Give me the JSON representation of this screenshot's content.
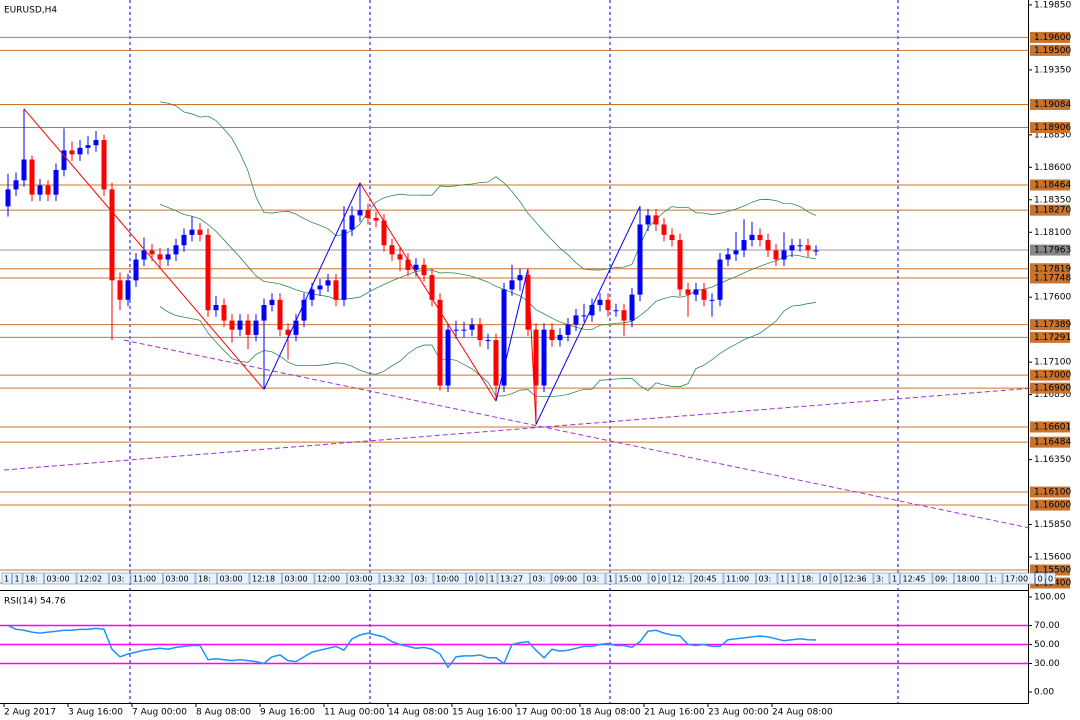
{
  "chart_data": [
    {
      "type": "candlestick",
      "title": "EURUSD,H4",
      "categories": [
        "2 Aug 2017",
        null,
        null,
        null,
        null,
        null,
        null,
        null,
        "3 Aug 16:00",
        null,
        null,
        null,
        null,
        null,
        null,
        null,
        "7 Aug 00:00",
        null,
        null,
        null,
        null,
        null,
        null,
        null,
        "8 Aug 08:00",
        null,
        null,
        null,
        null,
        null,
        null,
        null,
        "9 Aug 16:00",
        null,
        null,
        null,
        null,
        null,
        null,
        null,
        "11 Aug 00:00",
        null,
        null,
        null,
        null,
        null,
        null,
        null,
        "14 Aug 08:00",
        null,
        null,
        null,
        null,
        null,
        null,
        null,
        "15 Aug 16:00",
        null,
        null,
        null,
        null,
        null,
        null,
        null,
        "17 Aug 00:00",
        null,
        null,
        null,
        null,
        null,
        null,
        null,
        "18 Aug 08:00",
        null,
        null,
        null,
        null,
        null,
        null,
        null,
        "21 Aug 16:00",
        null,
        null,
        null,
        null,
        null,
        null,
        null,
        "23 Aug 00:00",
        null,
        null,
        null,
        null,
        null,
        null,
        null,
        "24 Aug 08:00",
        null,
        null,
        null,
        null,
        null
      ],
      "ohlc": [
        [
          1.183,
          1.1855,
          1.1822,
          1.1843
        ],
        [
          1.1843,
          1.1856,
          1.1838,
          1.185
        ],
        [
          1.185,
          1.1905,
          1.1845,
          1.1866
        ],
        [
          1.1866,
          1.1869,
          1.1834,
          1.1839
        ],
        [
          1.1839,
          1.1851,
          1.1834,
          1.1846
        ],
        [
          1.1846,
          1.185,
          1.1834,
          1.1839
        ],
        [
          1.1839,
          1.1863,
          1.1834,
          1.1858
        ],
        [
          1.1858,
          1.189,
          1.1853,
          1.1873
        ],
        [
          1.1873,
          1.188,
          1.1865,
          1.187
        ],
        [
          1.187,
          1.1881,
          1.1865,
          1.1875
        ],
        [
          1.1875,
          1.1884,
          1.187,
          1.1877
        ],
        [
          1.1877,
          1.1888,
          1.1872,
          1.1881
        ],
        [
          1.1881,
          1.1885,
          1.1838,
          1.1843
        ],
        [
          1.1843,
          1.1848,
          1.1727,
          1.1773
        ],
        [
          1.1773,
          1.1779,
          1.175,
          1.1758
        ],
        [
          1.1758,
          1.1778,
          1.1753,
          1.1773
        ],
        [
          1.1773,
          1.1794,
          1.1768,
          1.1789
        ],
        [
          1.1789,
          1.1806,
          1.1784,
          1.1796
        ],
        [
          1.1796,
          1.1801,
          1.1788,
          1.1793
        ],
        [
          1.1793,
          1.1798,
          1.1782,
          1.1789
        ],
        [
          1.1789,
          1.1798,
          1.1784,
          1.1793
        ],
        [
          1.1793,
          1.1805,
          1.1788,
          1.18
        ],
        [
          1.18,
          1.1813,
          1.1795,
          1.1808
        ],
        [
          1.1808,
          1.1822,
          1.1803,
          1.1812
        ],
        [
          1.1812,
          1.1817,
          1.1803,
          1.1808
        ],
        [
          1.1808,
          1.1813,
          1.1745,
          1.175
        ],
        [
          1.175,
          1.1761,
          1.1745,
          1.1754
        ],
        [
          1.1754,
          1.1759,
          1.1737,
          1.1742
        ],
        [
          1.1742,
          1.1747,
          1.1725,
          1.1735
        ],
        [
          1.1735,
          1.1747,
          1.173,
          1.1742
        ],
        [
          1.1742,
          1.1747,
          1.172,
          1.1731
        ],
        [
          1.1731,
          1.1747,
          1.1726,
          1.1742
        ],
        [
          1.1742,
          1.1759,
          1.1689,
          1.1754
        ],
        [
          1.1754,
          1.1763,
          1.1749,
          1.1758
        ],
        [
          1.1758,
          1.1763,
          1.173,
          1.1735
        ],
        [
          1.1735,
          1.174,
          1.1712,
          1.1731
        ],
        [
          1.1731,
          1.1747,
          1.1726,
          1.1742
        ],
        [
          1.1742,
          1.1763,
          1.1737,
          1.1758
        ],
        [
          1.1758,
          1.1771,
          1.1753,
          1.1766
        ],
        [
          1.1766,
          1.1774,
          1.1761,
          1.1769
        ],
        [
          1.1769,
          1.1778,
          1.1764,
          1.1773
        ],
        [
          1.1773,
          1.1778,
          1.1753,
          1.1758
        ],
        [
          1.1758,
          1.183,
          1.1753,
          1.1812
        ],
        [
          1.1812,
          1.183,
          1.1807,
          1.1823
        ],
        [
          1.1823,
          1.1848,
          1.1818,
          1.1827
        ],
        [
          1.1827,
          1.1832,
          1.1816,
          1.1821
        ],
        [
          1.1821,
          1.1826,
          1.1814,
          1.1819
        ],
        [
          1.1819,
          1.1824,
          1.1795,
          1.18
        ],
        [
          1.18,
          1.1805,
          1.1788,
          1.1793
        ],
        [
          1.1793,
          1.1798,
          1.178,
          1.1789
        ],
        [
          1.1789,
          1.1794,
          1.1776,
          1.1781
        ],
        [
          1.1781,
          1.179,
          1.1776,
          1.1785
        ],
        [
          1.1785,
          1.179,
          1.1772,
          1.1777
        ],
        [
          1.1777,
          1.1782,
          1.1753,
          1.1758
        ],
        [
          1.1758,
          1.1763,
          1.1688,
          1.1692
        ],
        [
          1.1692,
          1.174,
          1.1687,
          1.1735
        ],
        [
          1.1735,
          1.1742,
          1.1728,
          1.1735
        ],
        [
          1.1735,
          1.1741,
          1.1729,
          1.1735
        ],
        [
          1.1735,
          1.1744,
          1.173,
          1.1739
        ],
        [
          1.1739,
          1.1744,
          1.1722,
          1.1727
        ],
        [
          1.1727,
          1.1732,
          1.172,
          1.1727
        ],
        [
          1.1727,
          1.1732,
          1.168,
          1.1692
        ],
        [
          1.1692,
          1.1771,
          1.1687,
          1.1766
        ],
        [
          1.1766,
          1.1785,
          1.1761,
          1.1773
        ],
        [
          1.1773,
          1.1782,
          1.1765,
          1.1777
        ],
        [
          1.1777,
          1.1782,
          1.173,
          1.1735
        ],
        [
          1.1735,
          1.174,
          1.1662,
          1.1692
        ],
        [
          1.1692,
          1.174,
          1.1687,
          1.1735
        ],
        [
          1.1735,
          1.174,
          1.1722,
          1.1727
        ],
        [
          1.1727,
          1.1736,
          1.1722,
          1.1731
        ],
        [
          1.1731,
          1.1744,
          1.1726,
          1.1739
        ],
        [
          1.1739,
          1.1751,
          1.1734,
          1.1746
        ],
        [
          1.1746,
          1.1755,
          1.1741,
          1.1746
        ],
        [
          1.1746,
          1.1759,
          1.1741,
          1.1754
        ],
        [
          1.1754,
          1.1763,
          1.1749,
          1.1758
        ],
        [
          1.1758,
          1.1763,
          1.1745,
          1.175
        ],
        [
          1.175,
          1.1755,
          1.1745,
          1.175
        ],
        [
          1.175,
          1.1755,
          1.173,
          1.1742
        ],
        [
          1.1742,
          1.1767,
          1.1737,
          1.1762
        ],
        [
          1.1762,
          1.183,
          1.1757,
          1.1816
        ],
        [
          1.1816,
          1.1828,
          1.1811,
          1.1823
        ],
        [
          1.1823,
          1.1828,
          1.1811,
          1.1816
        ],
        [
          1.1816,
          1.1821,
          1.1803,
          1.1808
        ],
        [
          1.1808,
          1.1813,
          1.1799,
          1.1804
        ],
        [
          1.1804,
          1.1809,
          1.1761,
          1.1766
        ],
        [
          1.1766,
          1.1771,
          1.1745,
          1.1762
        ],
        [
          1.1762,
          1.1771,
          1.1757,
          1.1766
        ],
        [
          1.1766,
          1.1771,
          1.1753,
          1.1758
        ],
        [
          1.1758,
          1.1763,
          1.1745,
          1.1758
        ],
        [
          1.1758,
          1.1794,
          1.1753,
          1.1789
        ],
        [
          1.1789,
          1.1798,
          1.1784,
          1.1793
        ],
        [
          1.1793,
          1.181,
          1.1788,
          1.1796
        ],
        [
          1.1796,
          1.182,
          1.1791,
          1.1804
        ],
        [
          1.1804,
          1.1818,
          1.1799,
          1.1808
        ],
        [
          1.1808,
          1.1813,
          1.1799,
          1.1804
        ],
        [
          1.1804,
          1.1809,
          1.1791,
          1.1796
        ],
        [
          1.1796,
          1.1801,
          1.1784,
          1.1789
        ],
        [
          1.1789,
          1.181,
          1.1784,
          1.1796
        ],
        [
          1.1796,
          1.1805,
          1.1791,
          1.18
        ],
        [
          1.18,
          1.1805,
          1.1795,
          1.18
        ],
        [
          1.18,
          1.1805,
          1.1791,
          1.1796
        ],
        [
          1.1796,
          1.18,
          1.1792,
          1.1796
        ]
      ],
      "colors": {
        "up": "#0000ff",
        "down": "#ff0000",
        "band": "#2e8b57",
        "level": "#c8742f",
        "trend": "#9932cc"
      },
      "ylim": [
        1.15346,
        1.19888
      ],
      "yticks": [
        {
          "value": 1.1985,
          "label": "1.19850"
        },
        {
          "value": 1.1935,
          "label": "1.19350"
        },
        {
          "value": 1.1885,
          "label": "1.18850"
        },
        {
          "value": 1.186,
          "label": "1.18600"
        },
        {
          "value": 1.1835,
          "label": "1.18350"
        },
        {
          "value": 1.181,
          "label": "1.18100"
        },
        {
          "value": 1.176,
          "label": "1.17600"
        },
        {
          "value": 1.171,
          "label": "1.17100"
        },
        {
          "value": 1.1685,
          "label": "1.16850"
        },
        {
          "value": 1.1635,
          "label": "1.16350"
        },
        {
          "value": 1.1585,
          "label": "1.15850"
        },
        {
          "value": 1.156,
          "label": "1.15600"
        }
      ],
      "levels": [
        {
          "value": 1.196,
          "label": "1.19600"
        },
        {
          "value": 1.195,
          "label": "1.19500"
        },
        {
          "value": 1.19084,
          "label": "1.19084"
        },
        {
          "value": 1.18906,
          "label": "1.18906"
        },
        {
          "value": 1.18464,
          "label": "1.18464"
        },
        {
          "value": 1.1827,
          "label": "1.18270"
        },
        {
          "value": 1.17819,
          "label": "1.17819"
        },
        {
          "value": 1.17748,
          "label": "1.17748"
        },
        {
          "value": 1.17389,
          "label": "1.17389"
        },
        {
          "value": 1.17291,
          "label": "1.17291"
        },
        {
          "value": 1.17,
          "label": "1.17000"
        },
        {
          "value": 1.169,
          "label": "1.16900"
        },
        {
          "value": 1.16601,
          "label": "1.16601"
        },
        {
          "value": 1.16484,
          "label": "1.16484"
        },
        {
          "value": 1.161,
          "label": "1.16100"
        },
        {
          "value": 1.16,
          "label": "1.16000"
        },
        {
          "value": 1.155,
          "label": "1.15500"
        },
        {
          "value": 1.154,
          "label": "1.15400"
        }
      ],
      "current_price": {
        "value": 1.17963,
        "label": "1.17963"
      },
      "zigzag": [
        [
          2,
          1.1905
        ],
        [
          32,
          1.1689
        ],
        [
          44,
          1.1848
        ],
        [
          61,
          1.168
        ],
        [
          65,
          1.1782
        ],
        [
          66,
          1.1662
        ],
        [
          79,
          1.183
        ]
      ],
      "trendlines": [
        [
          [
            -0.5,
            1.1627
          ],
          [
            128,
            1.169
          ]
        ],
        [
          [
            14.5,
            1.1727
          ],
          [
            128,
            1.1582
          ]
        ]
      ],
      "time_strip": [
        "1",
        "1",
        "18:",
        "03:00",
        "12:02",
        "03:",
        "11:00",
        "03:00",
        "18:",
        "03:00",
        "12:18",
        "03:00",
        "12:00",
        "03:00",
        "13:32",
        "03:",
        "10:00",
        "0",
        "0",
        "1",
        "13:27",
        "03:",
        "09:00",
        "03:",
        "1",
        "15:00",
        "0",
        "0",
        "12:",
        "20:45",
        "11:00",
        "03:",
        "1",
        "1",
        "18:",
        "0",
        "0",
        "12:36",
        "3:",
        "1",
        "12:45",
        "09:",
        "18:00",
        "1:",
        "17:00",
        "0",
        "0"
      ]
    },
    {
      "type": "line",
      "title": "RSI(14) 54.76",
      "values": [
        70,
        66,
        65,
        63,
        62,
        63,
        64,
        65,
        65,
        66,
        66,
        67,
        66,
        45,
        37,
        40,
        42,
        44,
        45,
        46,
        45,
        47,
        48,
        49,
        49,
        34,
        35,
        34,
        33,
        34,
        33,
        32,
        30,
        37,
        39,
        33,
        32,
        37,
        42,
        44,
        46,
        48,
        44,
        56,
        60,
        62,
        60,
        58,
        53,
        50,
        48,
        46,
        47,
        45,
        40,
        26,
        37,
        38,
        38,
        39,
        36,
        36,
        30,
        50,
        52,
        53,
        44,
        36,
        45,
        43,
        44,
        46,
        48,
        48,
        50,
        51,
        49,
        49,
        47,
        53,
        64,
        65,
        62,
        60,
        59,
        50,
        49,
        50,
        48,
        48,
        55,
        56,
        57,
        58,
        59,
        58,
        56,
        54,
        55,
        56,
        55,
        54.76
      ],
      "color": "#1e90ff",
      "level_color": "#ff00ff",
      "ylim": [
        -11.6,
        105.3
      ],
      "yticks": [
        {
          "value": 100,
          "label": "100.00"
        },
        {
          "value": 70,
          "label": "70.00"
        },
        {
          "value": 50,
          "label": "50.00"
        },
        {
          "value": 30,
          "label": "30.00"
        },
        {
          "value": 0,
          "label": "0.00"
        }
      ],
      "levels": [
        70,
        50,
        30
      ]
    }
  ]
}
